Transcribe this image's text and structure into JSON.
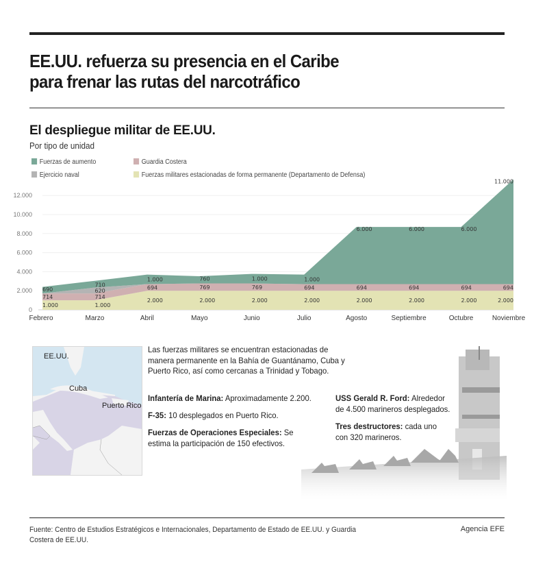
{
  "header": {
    "title_line1": "EE.UU. refuerza su presencia en el Caribe",
    "title_line2": "para frenar las rutas del narcotráfico"
  },
  "chart": {
    "title": "El despliegue militar de EE.UU.",
    "subtitle": "Por tipo de unidad",
    "legend": [
      {
        "label": "Fuerzas de aumento",
        "color": "#7aa898"
      },
      {
        "label": "Guardia Costera",
        "color": "#cfb0b1"
      },
      {
        "label": "Ejercicio naval",
        "color": "#b4b4b4"
      },
      {
        "label": "Fuerzas militares estacionadas de forma permanente (Departamento de Defensa)",
        "color": "#e3e3b4"
      }
    ],
    "y_ticks": [
      "0",
      "2.000",
      "4.000",
      "6.000",
      "8.000",
      "10.000",
      "12.000"
    ]
  },
  "chart_data": {
    "type": "area",
    "stacked": true,
    "title": "El despliegue militar de EE.UU.",
    "subtitle": "Por tipo de unidad",
    "xlabel": "",
    "ylabel": "",
    "ylim": [
      0,
      13000
    ],
    "y_ticks": [
      0,
      2000,
      4000,
      6000,
      8000,
      10000,
      12000
    ],
    "grid": true,
    "legend_position": "top-left",
    "categories": [
      "Febrero",
      "Marzo",
      "Abril",
      "Mayo",
      "Junio",
      "Julio",
      "Agosto",
      "Septiembre",
      "Octubre",
      "Noviembre"
    ],
    "series": [
      {
        "name": "Fuerzas militares estacionadas de forma permanente (Departamento de Defensa)",
        "color": "#e3e3b4",
        "values": [
          1000,
          1000,
          2000,
          2000,
          2000,
          2000,
          2000,
          2000,
          2000,
          2000
        ]
      },
      {
        "name": "Guardia Costera",
        "color": "#cfb0b1",
        "values": [
          714,
          714,
          694,
          769,
          769,
          694,
          694,
          694,
          694,
          694
        ]
      },
      {
        "name": "Ejercicio naval",
        "color": "#b4b4b4",
        "values": [
          0,
          620,
          0,
          0,
          0,
          0,
          0,
          0,
          0,
          0
        ]
      },
      {
        "name": "Fuerzas de aumento",
        "color": "#7aa898",
        "values": [
          690,
          710,
          1000,
          760,
          1000,
          1000,
          6000,
          6000,
          6000,
          11000
        ]
      }
    ],
    "data_labels": {
      "Fuerzas militares estacionadas": [
        "1.000",
        "1.000",
        "2.000",
        "2.000",
        "2.000",
        "2.000",
        "2.000",
        "2.000",
        "2.000",
        "2.000"
      ],
      "Guardia Costera": [
        "714",
        "714",
        "694",
        "769",
        "769",
        "694",
        "694",
        "694",
        "694",
        "694"
      ],
      "Ejercicio naval": [
        "",
        "620",
        "",
        "",
        "",
        "",
        "",
        "",
        "",
        ""
      ],
      "Fuerzas de aumento": [
        "690",
        "710",
        "1.000",
        "760",
        "1.000",
        "1.000",
        "6.000",
        "6.000",
        "6.000",
        "11.000"
      ]
    }
  },
  "info": {
    "map_labels": {
      "usa": "EE.UU.",
      "cuba": "Cuba",
      "puerto_rico": "Puerto Rico"
    },
    "intro": "Las fuerzas militares se encuentran estacionadas de manera permanente en la Bahía de Guantánamo, Cuba y Puerto Rico, así como cercanas a Trinidad y Tobago.",
    "facts_left": [
      {
        "label": "Infantería de Marina:",
        "text": " Aproximadamente 2.200."
      },
      {
        "label": "F-35:",
        "text": " 10 desplegados en Puerto Rico."
      },
      {
        "label": "Fuerzas de Operaciones Especiales:",
        "text": " Se estima la participación de 150 efectivos."
      }
    ],
    "facts_right": [
      {
        "label": "USS Gerald R. Ford:",
        "text": " Alrededor de 4.500 marineros desplegados."
      },
      {
        "label": "Tres destructores:",
        "text": " cada uno con 320 marineros."
      }
    ]
  },
  "footer": {
    "source": "Fuente: Centro de Estudios Estratégicos e Internacionales, Departamento de Estado de EE.UU. y Guardia Costera de EE.UU.",
    "credit": "Agencia EFE"
  }
}
